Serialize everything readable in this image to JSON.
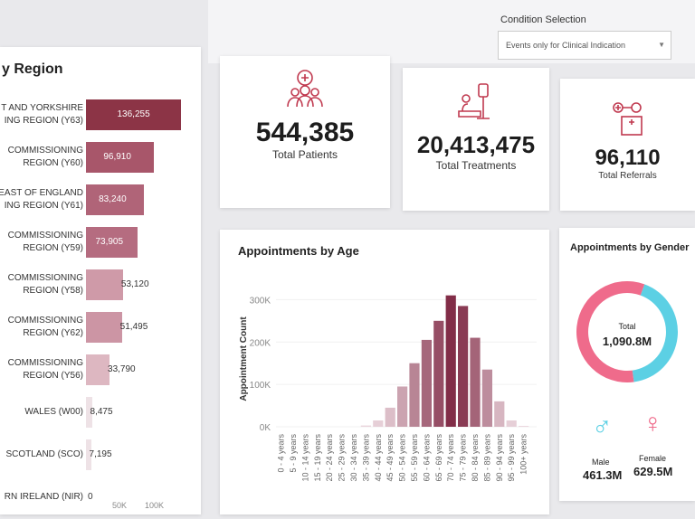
{
  "filter": {
    "label": "Condition Selection",
    "value": "Events only for Clinical Indication"
  },
  "kpis": [
    {
      "value": "544,385",
      "label": "Total Patients",
      "icon": "patients-icon"
    },
    {
      "value": "20,413,475",
      "label": "Total Treatments",
      "icon": "treatment-icon"
    },
    {
      "value": "96,110",
      "label": "Total Referrals",
      "icon": "referral-icon"
    }
  ],
  "region": {
    "title": "y Region",
    "axis_ticks": [
      "50K",
      "100K"
    ],
    "rows": [
      {
        "label1": "T AND YORKSHIRE",
        "label2": "ING REGION (Y63)",
        "value": 136255,
        "text": "136,255"
      },
      {
        "label1": "COMMISSIONING",
        "label2": "REGION (Y60)",
        "value": 96910,
        "text": "96,910"
      },
      {
        "label1": "EAST OF ENGLAND",
        "label2": "ING REGION (Y61)",
        "value": 83240,
        "text": "83,240"
      },
      {
        "label1": "COMMISSIONING",
        "label2": "REGION (Y59)",
        "value": 73905,
        "text": "73,905"
      },
      {
        "label1": "COMMISSIONING",
        "label2": "REGION (Y58)",
        "value": 53120,
        "text": "53,120"
      },
      {
        "label1": "COMMISSIONING",
        "label2": "REGION (Y62)",
        "value": 51495,
        "text": "51,495"
      },
      {
        "label1": "COMMISSIONING",
        "label2": "REGION (Y56)",
        "value": 33790,
        "text": "33,790"
      },
      {
        "label1": "",
        "label2": "WALES (W00)",
        "value": 8475,
        "text": "8,475"
      },
      {
        "label1": "",
        "label2": "SCOTLAND (SCO)",
        "value": 7195,
        "text": "7,195"
      },
      {
        "label1": "",
        "label2": "RN IRELAND (NIR)",
        "value": 0,
        "text": "0"
      }
    ]
  },
  "chart_data": [
    {
      "type": "bar",
      "title": "Appointments by Age",
      "xlabel": "",
      "ylabel": "Appointment Count",
      "ylim": [
        0,
        320000
      ],
      "y_ticks": [
        "0K",
        "100K",
        "200K",
        "300K"
      ],
      "categories": [
        "0 - 4 years",
        "5 - 9 years",
        "10 - 14 years",
        "15 - 19 years",
        "20 - 24 years",
        "25 - 29 years",
        "30 - 34 years",
        "35 - 39 years",
        "40 - 44 years",
        "45 - 49 years",
        "50 - 54 years",
        "55 - 59 years",
        "60 - 64 years",
        "65 - 69 years",
        "70 - 74 years",
        "75 - 79 years",
        "80 - 84 years",
        "85 - 89 years",
        "90 - 94 years",
        "95 - 99 years",
        "100+ years"
      ],
      "values": [
        0,
        0,
        0,
        0,
        0,
        0,
        0,
        3000,
        15000,
        45000,
        95000,
        150000,
        205000,
        250000,
        310000,
        285000,
        210000,
        135000,
        60000,
        15000,
        2000
      ]
    },
    {
      "type": "pie",
      "title": "Appointments by Gender",
      "center_label": "Total",
      "center_value": "1,090.8M",
      "slices": [
        {
          "name": "Male",
          "value": 461.3,
          "text": "461.3M",
          "color": "#5cd0e4"
        },
        {
          "name": "Female",
          "value": 629.5,
          "text": "629.5M",
          "color": "#ef6b8b"
        }
      ]
    }
  ]
}
